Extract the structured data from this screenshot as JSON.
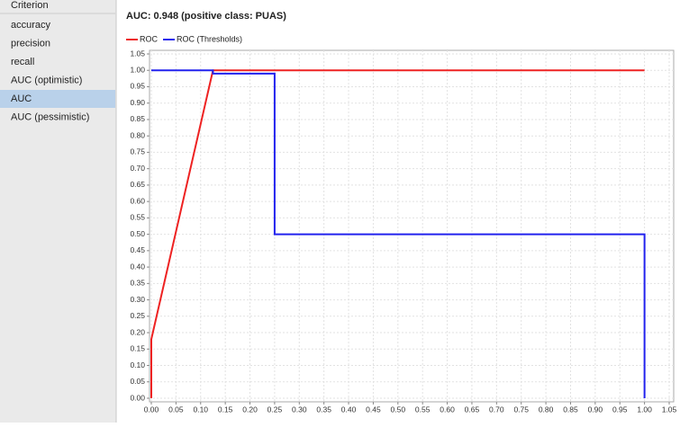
{
  "sidebar": {
    "header": "Criterion",
    "items": [
      "accuracy",
      "precision",
      "recall",
      "AUC (optimistic)",
      "AUC",
      "AUC (pessimistic)"
    ],
    "selected": 4
  },
  "chart_data": {
    "type": "line",
    "title": "AUC: 0.948 (positive class: PUAS)",
    "series": [
      {
        "name": "ROC",
        "color": "#ee2222",
        "x": [
          0,
          0,
          0.125,
          1.0
        ],
        "values": [
          0,
          0.18,
          1.0,
          1.0
        ]
      },
      {
        "name": "ROC (Thresholds)",
        "color": "#2222ee",
        "x": [
          0,
          0.125,
          0.125,
          0.25,
          0.25,
          1.0,
          1.0
        ],
        "values": [
          1.0,
          1.0,
          0.99,
          0.99,
          0.5,
          0.5,
          0
        ]
      }
    ],
    "xlim": [
      0,
      1.05
    ],
    "ylim": [
      0,
      1.05
    ],
    "grid": true,
    "xticks": [
      {
        "value": 0,
        "label": "0.00"
      },
      {
        "value": 0.05,
        "label": "0.05"
      },
      {
        "value": 0.1,
        "label": "0.10"
      },
      {
        "value": 0.15,
        "label": "0.15"
      },
      {
        "value": 0.2,
        "label": "0.20"
      },
      {
        "value": 0.25,
        "label": "0.25"
      },
      {
        "value": 0.3,
        "label": "0.30"
      },
      {
        "value": 0.35,
        "label": "0.35"
      },
      {
        "value": 0.4,
        "label": "0.40"
      },
      {
        "value": 0.45,
        "label": "0.45"
      },
      {
        "value": 0.5,
        "label": "0.50"
      },
      {
        "value": 0.55,
        "label": "0.55"
      },
      {
        "value": 0.6,
        "label": "0.60"
      },
      {
        "value": 0.65,
        "label": "0.65"
      },
      {
        "value": 0.7,
        "label": "0.70"
      },
      {
        "value": 0.75,
        "label": "0.75"
      },
      {
        "value": 0.8,
        "label": "0.80"
      },
      {
        "value": 0.85,
        "label": "0.85"
      },
      {
        "value": 0.9,
        "label": "0.90"
      },
      {
        "value": 0.95,
        "label": "0.95"
      },
      {
        "value": 1.0,
        "label": "1.00"
      },
      {
        "value": 1.05,
        "label": "1.05"
      }
    ],
    "yticks": [
      {
        "value": 0,
        "label": "0.00"
      },
      {
        "value": 0.05,
        "label": "0.05"
      },
      {
        "value": 0.1,
        "label": "0.10"
      },
      {
        "value": 0.15,
        "label": "0.15"
      },
      {
        "value": 0.2,
        "label": "0.20"
      },
      {
        "value": 0.25,
        "label": "0.25"
      },
      {
        "value": 0.3,
        "label": "0.30"
      },
      {
        "value": 0.35,
        "label": "0.35"
      },
      {
        "value": 0.4,
        "label": "0.40"
      },
      {
        "value": 0.45,
        "label": "0.45"
      },
      {
        "value": 0.5,
        "label": "0.50"
      },
      {
        "value": 0.55,
        "label": "0.55"
      },
      {
        "value": 0.6,
        "label": "0.60"
      },
      {
        "value": 0.65,
        "label": "0.65"
      },
      {
        "value": 0.7,
        "label": "0.70"
      },
      {
        "value": 0.75,
        "label": "0.75"
      },
      {
        "value": 0.8,
        "label": "0.80"
      },
      {
        "value": 0.85,
        "label": "0.85"
      },
      {
        "value": 0.9,
        "label": "0.90"
      },
      {
        "value": 0.95,
        "label": "0.95"
      },
      {
        "value": 1.0,
        "label": "1.00"
      },
      {
        "value": 1.05,
        "label": "1.05"
      }
    ]
  }
}
